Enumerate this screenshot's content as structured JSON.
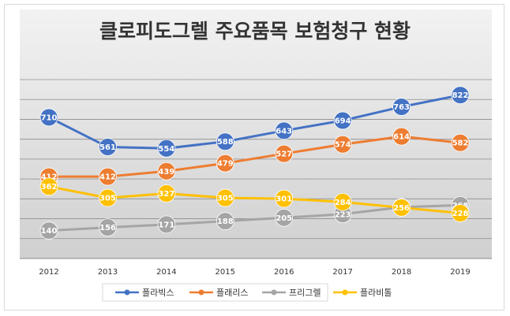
{
  "chart_data": {
    "type": "line",
    "title": "클로피도그렐 주요품목 보험청구 현황",
    "categories": [
      "2012",
      "2013",
      "2014",
      "2015",
      "2016",
      "2017",
      "2018",
      "2019"
    ],
    "series": [
      {
        "name": "플라빅스",
        "color": "#4472c4",
        "values": [
          710,
          561,
          554,
          588,
          643,
          694,
          763,
          822
        ]
      },
      {
        "name": "플래리스",
        "color": "#ed7d31",
        "values": [
          412,
          412,
          439,
          479,
          527,
          574,
          614,
          582
        ]
      },
      {
        "name": "프리그렐",
        "color": "#a5a5a5",
        "values": [
          140,
          156,
          171,
          188,
          205,
          223,
          258,
          268
        ]
      },
      {
        "name": "플라비톨",
        "color": "#ffc000",
        "values": [
          362,
          305,
          327,
          305,
          301,
          284,
          256,
          228
        ]
      }
    ],
    "ylim": [
      0,
      900
    ],
    "grid": true,
    "legend": "bottom",
    "xlabel": "",
    "ylabel": ""
  }
}
